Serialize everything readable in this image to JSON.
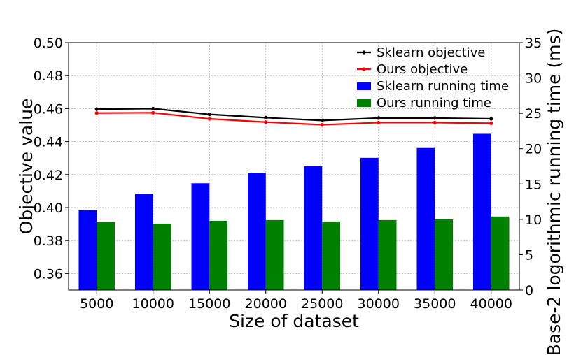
{
  "chart_data": {
    "type": "bar",
    "xlabel": "Size of dataset",
    "ylabel": "Objective value",
    "y2label": "Base-2 logorithmic running time (ms)",
    "categories": [
      "5000",
      "10000",
      "15000",
      "20000",
      "25000",
      "30000",
      "35000",
      "40000"
    ],
    "ylim": [
      0.35,
      0.5
    ],
    "y2lim": [
      0,
      35
    ],
    "yticks": [
      "0.36",
      "0.38",
      "0.40",
      "0.42",
      "0.44",
      "0.46",
      "0.48",
      "0.50"
    ],
    "y2ticks": [
      "0",
      "5",
      "10",
      "15",
      "20",
      "25",
      "30",
      "35"
    ],
    "grid": true,
    "legend_position": "top-right",
    "series": [
      {
        "name": "Sklearn objective",
        "type": "line",
        "axis": "left",
        "color": "#000000",
        "values": [
          0.4597,
          0.46,
          0.4565,
          0.4545,
          0.4528,
          0.4543,
          0.4543,
          0.4538
        ]
      },
      {
        "name": "Ours objective",
        "type": "line",
        "axis": "left",
        "color": "#ff0000",
        "values": [
          0.4573,
          0.4575,
          0.4538,
          0.4518,
          0.4502,
          0.4515,
          0.4515,
          0.4511
        ]
      },
      {
        "name": "Sklearn running time",
        "type": "bar",
        "axis": "right",
        "color": "#0000ff",
        "values": [
          11.3,
          13.6,
          15.1,
          16.6,
          17.5,
          18.7,
          20.1,
          22.1
        ]
      },
      {
        "name": "Ours running time",
        "type": "bar",
        "axis": "right",
        "color": "#008000",
        "values": [
          9.6,
          9.4,
          9.8,
          9.9,
          9.7,
          9.9,
          10.0,
          10.4
        ]
      }
    ]
  }
}
